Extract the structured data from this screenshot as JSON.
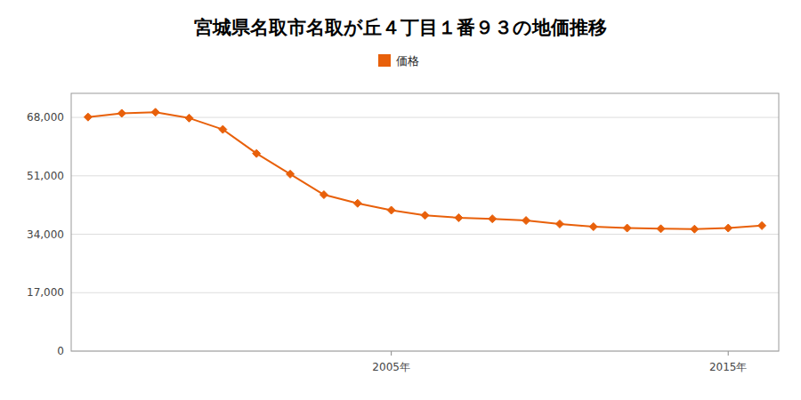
{
  "chart_data": {
    "type": "line",
    "title": "宮城県名取市名取が丘４丁目１番９３の地価推移",
    "x": [
      1996,
      1997,
      1998,
      1999,
      2000,
      2001,
      2002,
      2003,
      2004,
      2005,
      2006,
      2007,
      2008,
      2009,
      2010,
      2011,
      2012,
      2013,
      2014,
      2015,
      2016
    ],
    "series": [
      {
        "name": "価格",
        "color": "#e8600a",
        "marker": "diamond",
        "values": [
          68100,
          69200,
          69500,
          67800,
          64500,
          57500,
          51500,
          45500,
          43000,
          41000,
          39500,
          38800,
          38500,
          38000,
          37000,
          36200,
          35800,
          35600,
          35500,
          35800,
          36500
        ]
      }
    ],
    "xlim": [
      1995.5,
      2016.5
    ],
    "xticks": [
      {
        "value": 2005,
        "label": "2005年"
      },
      {
        "value": 2015,
        "label": "2015年"
      }
    ],
    "ylim": [
      0,
      75000
    ],
    "yticks": [
      0,
      {
        "value": 17000,
        "label": "17,000"
      },
      {
        "value": 34000,
        "label": "34,000"
      },
      {
        "value": 51000,
        "label": "51,000"
      },
      {
        "value": 68000,
        "label": "68,000"
      }
    ],
    "grid": true,
    "legend": "top"
  }
}
